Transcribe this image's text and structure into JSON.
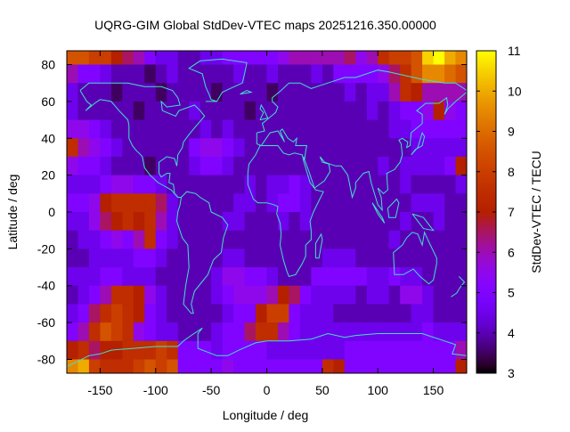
{
  "chart_data": {
    "type": "heatmap",
    "title": "UQRG-GIM Global StdDev-VTEC maps 20251216.350.00000",
    "xlabel": "Longitude / deg",
    "ylabel": "Latitude / deg",
    "colorbar_label": "StdDev-VTEC / TECU",
    "xlim": [
      -180,
      180
    ],
    "ylim": [
      -87.5,
      87.5
    ],
    "x_ticks": [
      -150,
      -100,
      -50,
      0,
      50,
      100,
      150
    ],
    "y_ticks": [
      -80,
      -60,
      -40,
      -20,
      0,
      20,
      40,
      60,
      80
    ],
    "color_range": [
      3,
      11
    ],
    "color_ticks": [
      3,
      4,
      5,
      6,
      7,
      8,
      9,
      10,
      11
    ],
    "palette": "black-blue-violet-red-yellow",
    "overlay": "coastlines",
    "overlay_color": "#40e0d0",
    "grid": false,
    "cell_lon_step": 10,
    "cell_lat_step": 10,
    "lon_edges_start": -180,
    "lat_edges_start": 90,
    "values": [
      [
        8.5,
        8.5,
        8,
        8,
        7,
        6.5,
        6,
        5,
        4.5,
        4.5,
        4,
        4,
        4.5,
        4.5,
        5,
        5,
        5,
        5,
        5,
        5.5,
        6,
        6,
        6,
        6,
        6,
        6.5,
        5.5,
        6,
        7.5,
        8,
        8,
        8.5,
        10.5,
        11,
        10,
        9.5
      ],
      [
        6,
        5,
        5,
        4.5,
        4,
        4,
        4,
        3.5,
        4,
        4.5,
        4,
        4,
        4,
        4,
        4,
        4.5,
        4,
        4,
        4.5,
        4,
        4,
        4,
        4.5,
        4,
        5,
        5,
        5,
        5,
        5.5,
        6.5,
        7.5,
        8.5,
        9.5,
        9.5,
        9,
        8.5
      ],
      [
        4.5,
        4,
        4,
        4,
        3.5,
        4,
        4,
        4,
        3.5,
        4,
        4,
        4,
        4,
        3.5,
        4,
        4,
        4,
        4,
        3.5,
        4,
        4,
        4,
        4,
        4,
        4,
        4.5,
        4,
        4.5,
        4.5,
        6,
        7.5,
        7,
        6,
        6,
        6,
        6
      ],
      [
        4.5,
        4,
        4,
        4,
        4,
        4,
        3.5,
        4,
        4,
        4,
        4,
        4.5,
        4,
        4,
        4,
        4,
        3.5,
        4,
        4,
        4,
        4,
        4,
        4,
        4,
        4,
        4,
        4,
        4.5,
        4,
        4.5,
        5,
        5,
        5.5,
        7,
        5.5,
        5
      ],
      [
        5.5,
        5.5,
        5,
        4.5,
        4,
        4,
        4,
        4,
        4,
        4,
        4,
        4,
        4.5,
        4,
        4.5,
        4,
        4,
        4,
        4,
        4,
        4,
        4,
        4,
        4,
        4,
        4,
        4,
        4,
        4,
        4.5,
        4.5,
        5,
        5,
        5,
        5,
        5
      ],
      [
        7.5,
        6,
        5.5,
        5,
        4.5,
        4,
        4,
        4,
        4,
        4,
        4,
        5,
        5.5,
        5.5,
        5,
        4.5,
        4,
        4,
        4,
        4,
        4,
        4,
        4,
        4,
        4,
        4,
        4,
        4,
        4,
        4,
        4,
        4.5,
        4.5,
        4.5,
        4.5,
        4.5
      ],
      [
        5.5,
        5,
        5,
        4.5,
        4,
        4,
        4,
        3.5,
        4,
        4,
        4,
        4.5,
        5,
        5,
        4.5,
        4,
        4,
        4,
        4,
        4,
        4,
        4,
        4,
        4,
        4,
        4,
        4,
        4,
        4.5,
        4,
        4.5,
        4.5,
        4.5,
        4.5,
        5,
        7
      ],
      [
        4.5,
        4.5,
        4.5,
        5,
        5.5,
        5.5,
        5,
        5,
        4.5,
        4,
        4,
        4,
        4,
        4,
        4,
        4,
        4.5,
        4,
        4.5,
        4.5,
        5,
        4.5,
        4,
        4,
        4,
        4,
        4,
        4,
        4,
        4,
        4.5,
        4,
        4,
        4,
        4,
        4.5
      ],
      [
        5,
        5,
        5.5,
        7,
        7.5,
        7.5,
        7.5,
        7.5,
        6.5,
        4.5,
        4,
        4,
        4,
        4,
        4,
        4.5,
        4.5,
        4,
        4.5,
        5,
        5,
        4.5,
        4,
        4,
        4,
        4,
        4,
        4,
        4,
        4,
        4,
        4.5,
        4.5,
        4.5,
        4,
        4
      ],
      [
        4.5,
        4.5,
        5.5,
        6.5,
        7,
        7.5,
        7,
        7.5,
        6,
        4.5,
        4,
        4,
        4,
        4,
        4.5,
        4.5,
        4,
        4,
        4,
        4.5,
        4,
        4.5,
        4,
        4,
        4,
        4,
        4,
        4,
        4,
        4,
        4.5,
        4,
        4,
        4.5,
        4,
        4
      ],
      [
        4,
        4.5,
        4.5,
        5,
        5.5,
        5,
        6,
        7.5,
        5,
        4.5,
        4,
        4,
        4,
        4,
        4,
        4,
        4,
        4,
        4,
        4,
        4,
        4,
        4,
        4,
        4,
        4,
        4,
        4,
        4,
        4.5,
        4,
        4,
        4,
        4,
        4,
        4
      ],
      [
        4,
        4,
        4.5,
        4.5,
        4.5,
        4.5,
        5,
        5,
        4.5,
        4,
        4,
        4,
        4,
        4,
        4.5,
        4.5,
        4,
        4,
        4,
        4,
        4,
        4,
        4,
        4.5,
        4.5,
        4.5,
        4,
        4,
        4,
        4,
        4,
        4,
        4,
        4,
        4,
        4
      ],
      [
        4.5,
        4.5,
        4.5,
        5,
        5,
        4.5,
        4.5,
        4.5,
        4,
        4,
        4,
        4,
        4,
        4.5,
        5.5,
        5.5,
        5,
        5,
        4.5,
        4,
        4,
        4,
        5,
        5,
        5,
        5,
        5,
        4.5,
        4.5,
        5,
        4.5,
        4.5,
        4,
        4,
        4,
        4
      ],
      [
        4,
        4.5,
        5,
        6,
        7.5,
        7.5,
        7,
        5.5,
        4.5,
        4,
        4,
        4,
        4,
        4.5,
        5,
        5.5,
        5.5,
        5.5,
        6,
        7,
        6.5,
        5,
        4.5,
        4.5,
        4.5,
        4.5,
        4,
        4.5,
        4.5,
        4,
        5.5,
        5.5,
        4.5,
        4,
        4,
        4
      ],
      [
        4.5,
        5,
        6.5,
        7.5,
        8,
        7.5,
        7,
        5,
        4.5,
        4,
        4,
        4,
        4,
        4,
        4.5,
        5,
        5,
        7,
        8,
        8,
        5,
        4.5,
        4.5,
        4.5,
        4,
        4,
        4,
        4,
        4,
        4,
        4,
        4.5,
        4.5,
        4,
        4,
        4
      ],
      [
        5,
        6,
        7.5,
        8.5,
        8,
        7.5,
        5.5,
        5,
        4.5,
        4.5,
        4,
        4,
        4,
        4.5,
        5,
        5,
        6.5,
        7.5,
        7.5,
        6,
        5,
        4.5,
        4.5,
        4.5,
        4.5,
        4.5,
        4.5,
        4.5,
        4.5,
        4.5,
        4.5,
        4.5,
        5,
        4.5,
        4.5,
        4.5
      ],
      [
        7,
        7.5,
        6.5,
        7,
        7,
        7.5,
        7.5,
        7.5,
        8,
        7.5,
        5,
        5,
        5,
        4.5,
        5,
        5,
        5,
        5,
        4.5,
        4.5,
        4.5,
        4.5,
        4.5,
        4.5,
        4.5,
        5,
        5,
        5,
        5,
        5,
        5,
        5,
        5,
        5,
        5,
        6
      ],
      [
        9.5,
        10,
        8,
        7.5,
        7.5,
        7.5,
        8,
        8.5,
        8,
        8.5,
        5,
        5,
        5,
        5,
        5.5,
        5,
        5,
        5,
        5,
        5,
        5,
        5,
        5,
        7.5,
        7,
        5,
        5,
        5,
        5,
        5,
        5,
        5,
        5,
        5,
        5,
        7
      ]
    ]
  }
}
